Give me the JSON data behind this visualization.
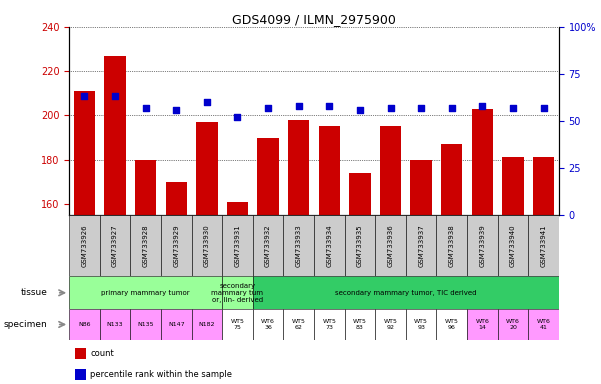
{
  "title": "GDS4099 / ILMN_2975900",
  "samples": [
    "GSM733926",
    "GSM733927",
    "GSM733928",
    "GSM733929",
    "GSM733930",
    "GSM733931",
    "GSM733932",
    "GSM733933",
    "GSM733934",
    "GSM733935",
    "GSM733936",
    "GSM733937",
    "GSM733938",
    "GSM733939",
    "GSM733940",
    "GSM733941"
  ],
  "counts": [
    211,
    227,
    180,
    170,
    197,
    161,
    190,
    198,
    195,
    174,
    195,
    180,
    187,
    203,
    181,
    181
  ],
  "percentiles": [
    63,
    63,
    57,
    56,
    60,
    52,
    57,
    58,
    58,
    56,
    57,
    57,
    57,
    58,
    57,
    57
  ],
  "ylim_left": [
    155,
    240
  ],
  "ylim_right": [
    0,
    100
  ],
  "yticks_left": [
    160,
    180,
    200,
    220,
    240
  ],
  "yticks_right": [
    0,
    25,
    50,
    75,
    100
  ],
  "bar_color": "#cc0000",
  "dot_color": "#0000cc",
  "tissue_groups": [
    {
      "label": "primary mammary tumor",
      "start": 0,
      "end": 4,
      "color": "#99ff99"
    },
    {
      "label": "secondary\nmammary tum\nor, lin- derived",
      "start": 5,
      "end": 5,
      "color": "#99ff99"
    },
    {
      "label": "secondary mammary tumor, TIC derived",
      "start": 6,
      "end": 15,
      "color": "#33cc66"
    }
  ],
  "specimen_labels": [
    "N86",
    "N133",
    "N135",
    "N147",
    "N182",
    "WT5\n75",
    "WT6\n36",
    "WT5\n62",
    "WT5\n73",
    "WT5\n83",
    "WT5\n92",
    "WT5\n93",
    "WT5\n96",
    "WT6\n14",
    "WT6\n20",
    "WT6\n41"
  ],
  "specimen_colors": [
    "#ff99ff",
    "#ff99ff",
    "#ff99ff",
    "#ff99ff",
    "#ff99ff",
    "#ffffff",
    "#ffffff",
    "#ffffff",
    "#ffffff",
    "#ffffff",
    "#ffffff",
    "#ffffff",
    "#ffffff",
    "#ff99ff",
    "#ff99ff",
    "#ff99ff"
  ],
  "xticklabel_bg": "#cccccc",
  "legend_items": [
    {
      "color": "#cc0000",
      "label": "count"
    },
    {
      "color": "#0000cc",
      "label": "percentile rank within the sample"
    }
  ]
}
